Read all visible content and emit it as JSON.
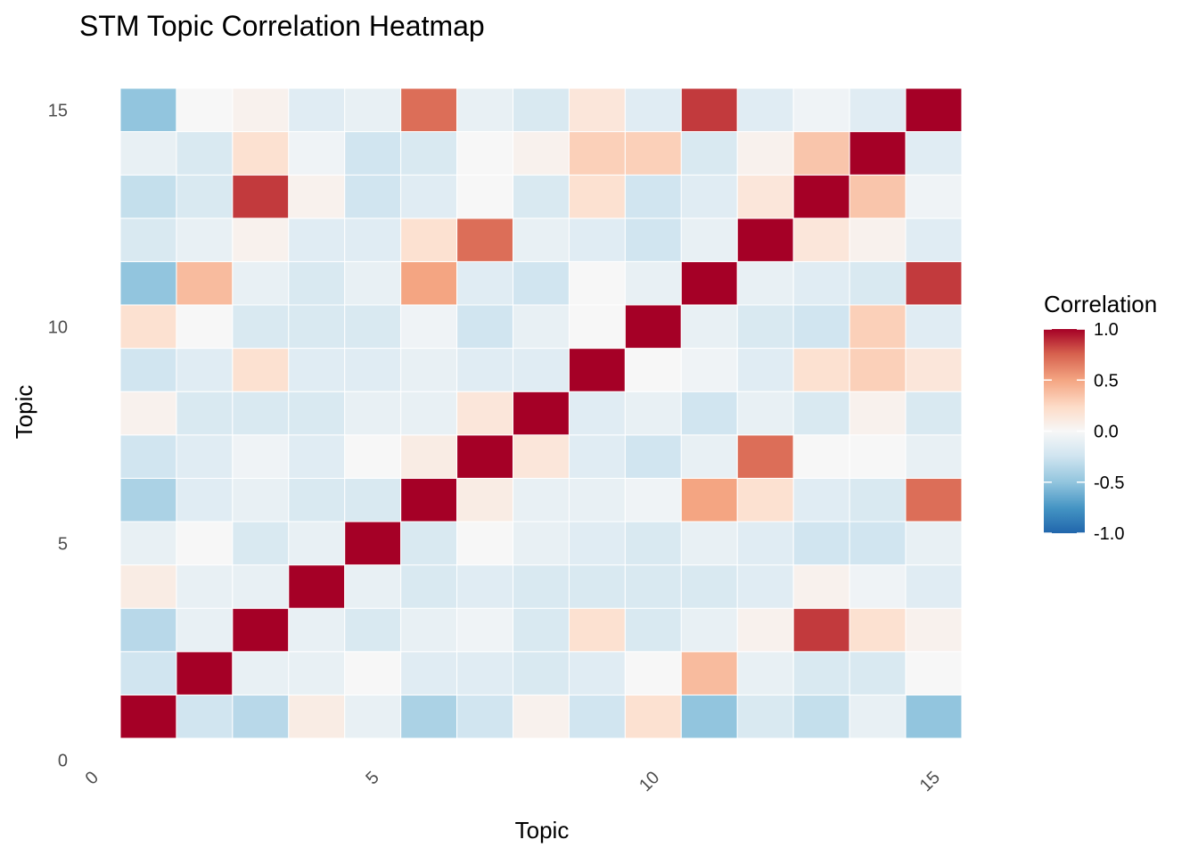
{
  "chart_data": {
    "type": "heatmap",
    "title": "STM Topic Correlation Heatmap",
    "xlabel": "Topic",
    "ylabel": "Topic",
    "x_ticks": [
      0,
      5,
      10,
      15
    ],
    "y_ticks": [
      0,
      5,
      10,
      15
    ],
    "topics": [
      1,
      2,
      3,
      4,
      5,
      6,
      7,
      8,
      9,
      10,
      11,
      12,
      13,
      14,
      15
    ],
    "legend": {
      "title": "Correlation",
      "ticks": [
        "1.0",
        "0.5",
        "0.0",
        "-0.5",
        "-1.0"
      ],
      "range": [
        -1,
        1
      ],
      "position": "right",
      "colors": {
        "neg": "#2166ac",
        "mid": "#f7f7f7",
        "pos": "#a50026"
      }
    },
    "matrix": [
      [
        1.0,
        -0.25,
        -0.35,
        0.1,
        -0.1,
        -0.4,
        -0.25,
        0.05,
        -0.25,
        0.2,
        -0.5,
        -0.2,
        -0.3,
        -0.1,
        -0.5
      ],
      [
        -0.25,
        1.0,
        -0.1,
        -0.1,
        0.0,
        -0.15,
        -0.15,
        -0.2,
        -0.15,
        0.0,
        0.4,
        -0.1,
        -0.2,
        -0.2,
        0.0
      ],
      [
        -0.35,
        -0.1,
        1.0,
        -0.1,
        -0.2,
        -0.1,
        -0.05,
        -0.2,
        0.2,
        -0.2,
        -0.1,
        0.05,
        0.85,
        0.2,
        0.05
      ],
      [
        0.1,
        -0.1,
        -0.1,
        1.0,
        -0.1,
        -0.2,
        -0.15,
        -0.2,
        -0.2,
        -0.2,
        -0.2,
        -0.15,
        0.05,
        -0.05,
        -0.15
      ],
      [
        -0.1,
        0.0,
        -0.2,
        -0.1,
        1.0,
        -0.2,
        0.0,
        -0.1,
        -0.15,
        -0.2,
        -0.1,
        -0.15,
        -0.25,
        -0.25,
        -0.1
      ],
      [
        -0.4,
        -0.15,
        -0.1,
        -0.2,
        -0.2,
        1.0,
        0.1,
        -0.1,
        -0.1,
        -0.05,
        0.5,
        0.2,
        -0.15,
        -0.2,
        0.7
      ],
      [
        -0.25,
        -0.15,
        -0.05,
        -0.15,
        0.0,
        0.1,
        1.0,
        0.15,
        -0.15,
        -0.25,
        -0.1,
        0.7,
        0.0,
        0.0,
        -0.1
      ],
      [
        0.05,
        -0.2,
        -0.2,
        -0.2,
        -0.1,
        -0.1,
        0.15,
        1.0,
        -0.15,
        -0.1,
        -0.25,
        -0.1,
        -0.2,
        0.05,
        -0.2
      ],
      [
        -0.25,
        -0.15,
        0.2,
        -0.15,
        -0.15,
        -0.1,
        -0.15,
        -0.15,
        1.0,
        0.0,
        -0.05,
        -0.15,
        0.2,
        0.3,
        0.15
      ],
      [
        0.2,
        0.0,
        -0.2,
        -0.2,
        -0.2,
        -0.05,
        -0.25,
        -0.1,
        0.0,
        1.0,
        -0.1,
        -0.2,
        -0.25,
        0.3,
        -0.15
      ],
      [
        -0.5,
        0.4,
        -0.1,
        -0.2,
        -0.1,
        0.5,
        -0.15,
        -0.25,
        0.0,
        -0.1,
        1.0,
        -0.1,
        -0.15,
        -0.2,
        0.85
      ],
      [
        -0.2,
        -0.1,
        0.05,
        -0.15,
        -0.15,
        0.2,
        0.7,
        -0.1,
        -0.15,
        -0.25,
        -0.1,
        1.0,
        0.15,
        0.05,
        -0.15
      ],
      [
        -0.3,
        -0.2,
        0.85,
        0.05,
        -0.25,
        -0.15,
        0.0,
        -0.2,
        0.2,
        -0.25,
        -0.15,
        0.15,
        1.0,
        0.35,
        -0.05
      ],
      [
        -0.1,
        -0.2,
        0.2,
        -0.05,
        -0.25,
        -0.2,
        0.0,
        0.05,
        0.3,
        0.3,
        -0.2,
        0.05,
        0.35,
        1.0,
        -0.15
      ],
      [
        -0.5,
        0.0,
        0.05,
        -0.15,
        -0.1,
        0.7,
        -0.1,
        -0.2,
        0.15,
        -0.15,
        0.85,
        -0.15,
        -0.05,
        -0.15,
        1.0
      ]
    ]
  }
}
